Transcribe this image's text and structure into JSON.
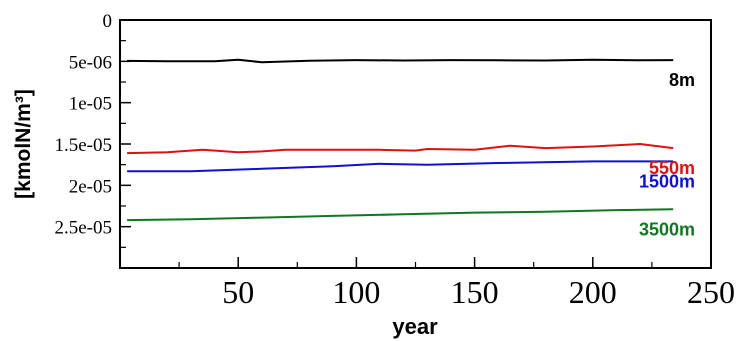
{
  "chart_data": {
    "type": "line",
    "xlabel": "year",
    "ylabel": "[kmolN/m³]",
    "xlim": [
      0,
      250
    ],
    "ylim": [
      3e-05,
      0
    ],
    "y_inverted": true,
    "grid": false,
    "xticks": [
      {
        "value": 50,
        "label": "50"
      },
      {
        "value": 100,
        "label": "100"
      },
      {
        "value": 150,
        "label": "150"
      },
      {
        "value": 200,
        "label": "200"
      },
      {
        "value": 250,
        "label": "250"
      }
    ],
    "yticks": [
      {
        "value": 0,
        "label": "0"
      },
      {
        "value": 5e-06,
        "label": "5e-06"
      },
      {
        "value": 1e-05,
        "label": "1e-05"
      },
      {
        "value": 1.5e-05,
        "label": "1.5e-05"
      },
      {
        "value": 2e-05,
        "label": "2e-05"
      },
      {
        "value": 2.5e-05,
        "label": "2.5e-05"
      }
    ],
    "series": [
      {
        "name": "8m",
        "color": "#000000",
        "x": [
          3,
          20,
          40,
          50,
          60,
          80,
          100,
          120,
          140,
          160,
          180,
          200,
          220,
          234
        ],
        "y": [
          4.95e-06,
          4.98e-06,
          5e-06,
          4.8e-06,
          5.12e-06,
          4.92e-06,
          4.85e-06,
          4.9e-06,
          4.85e-06,
          4.88e-06,
          4.9e-06,
          4.8e-06,
          4.88e-06,
          4.85e-06
        ]
      },
      {
        "name": "550m",
        "color": "#dd1111",
        "x": [
          3,
          20,
          35,
          50,
          60,
          70,
          90,
          110,
          125,
          130,
          150,
          165,
          180,
          200,
          220,
          234
        ],
        "y": [
          1.61e-05,
          1.6e-05,
          1.57e-05,
          1.6e-05,
          1.59e-05,
          1.57e-05,
          1.57e-05,
          1.57e-05,
          1.58e-05,
          1.56e-05,
          1.57e-05,
          1.52e-05,
          1.55e-05,
          1.53e-05,
          1.5e-05,
          1.55e-05
        ]
      },
      {
        "name": "1500m",
        "color": "#1111cc",
        "x": [
          3,
          30,
          60,
          90,
          110,
          130,
          160,
          200,
          234
        ],
        "y": [
          1.83e-05,
          1.83e-05,
          1.8e-05,
          1.77e-05,
          1.74e-05,
          1.75e-05,
          1.73e-05,
          1.71e-05,
          1.71e-05
        ]
      },
      {
        "name": "3500m",
        "color": "#117722",
        "x": [
          3,
          30,
          60,
          90,
          120,
          150,
          180,
          210,
          234
        ],
        "y": [
          2.42e-05,
          2.41e-05,
          2.39e-05,
          2.37e-05,
          2.35e-05,
          2.33e-05,
          2.32e-05,
          2.3e-05,
          2.29e-05
        ]
      }
    ]
  }
}
